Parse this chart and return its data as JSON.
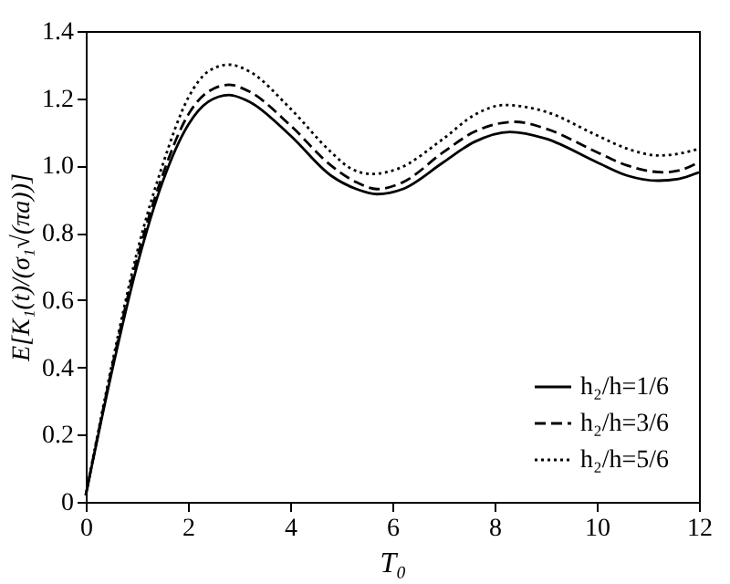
{
  "chart_data": {
    "type": "line",
    "xlabel": "T₀",
    "ylabel": "E[K₁(t)/(σ₁√(πa))]",
    "xlim": [
      0,
      12
    ],
    "xticks": [
      0,
      2,
      4,
      6,
      8,
      10,
      12
    ],
    "ylim": [
      0,
      1.4
    ],
    "yticks": [
      0,
      0.2,
      0.4,
      0.6,
      0.8,
      {
        "value": 1,
        "label": "1.0"
      },
      1.2,
      1.4
    ],
    "grid": false,
    "legend": "bottom right",
    "marker": "none",
    "series": [
      {
        "name": "h₂/h=1/6",
        "color": "#000000",
        "line_style": "solid",
        "x": [
          0,
          0.5,
          1,
          1.5,
          2,
          2.4,
          2.8,
          3.2,
          4,
          4.8,
          5.3,
          5.7,
          6.2,
          7,
          7.6,
          8.3,
          9,
          10,
          10.6,
          11.2,
          11.6,
          12
        ],
        "values": [
          0.02,
          0.38,
          0.7,
          0.95,
          1.12,
          1.19,
          1.21,
          1.19,
          1.09,
          0.97,
          0.93,
          0.915,
          0.93,
          1.01,
          1.07,
          1.1,
          1.08,
          1.01,
          0.97,
          0.955,
          0.96,
          0.98
        ]
      },
      {
        "name": "h₂/h=3/6",
        "color": "#000000",
        "line_style": "dashed",
        "x": [
          0,
          0.5,
          1,
          1.5,
          2,
          2.4,
          2.8,
          3.2,
          4,
          4.8,
          5.3,
          5.7,
          6.2,
          7,
          7.6,
          8.4,
          9,
          10,
          10.6,
          11.3,
          11.6,
          12
        ],
        "values": [
          0.02,
          0.39,
          0.72,
          0.97,
          1.15,
          1.22,
          1.24,
          1.22,
          1.12,
          1.0,
          0.95,
          0.93,
          0.95,
          1.04,
          1.1,
          1.13,
          1.11,
          1.04,
          1.0,
          0.98,
          0.985,
          1.01
        ]
      },
      {
        "name": "h₂/h=5/6",
        "color": "#000000",
        "line_style": "dotted",
        "x": [
          0,
          0.5,
          1,
          1.5,
          2,
          2.4,
          2.8,
          3.2,
          4,
          4.8,
          5.2,
          5.6,
          6.1,
          7,
          7.6,
          8.2,
          9,
          10,
          10.6,
          11.2,
          11.6,
          12
        ],
        "values": [
          0.02,
          0.4,
          0.74,
          1.0,
          1.2,
          1.28,
          1.3,
          1.28,
          1.17,
          1.04,
          0.99,
          0.975,
          0.99,
          1.08,
          1.15,
          1.18,
          1.16,
          1.09,
          1.05,
          1.03,
          1.035,
          1.05
        ]
      }
    ]
  }
}
